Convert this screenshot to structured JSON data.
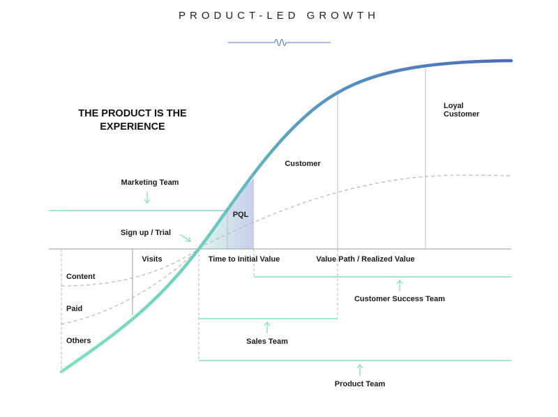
{
  "title": "PRODUCT-LED GROWTH",
  "headline": {
    "line1": "THE PRODUCT IS THE",
    "line2": "EXPERIENCE"
  },
  "labels": {
    "marketing_team": "Marketing Team",
    "signup_trial": "Sign up / Trial",
    "pql": "PQL",
    "customer": "Customer",
    "loyal_1": "Loyal",
    "loyal_2": "Customer",
    "visits": "Visits",
    "time_to_value": "Time to Initial Value",
    "value_path": "Value Path / Realized Value",
    "content": "Content",
    "paid": "Paid",
    "others": "Others",
    "customer_success_team": "Customer Success Team",
    "sales_team": "Sales Team",
    "product_team": "Product Team"
  },
  "colors": {
    "curve_start": "#7fe0c2",
    "curve_end": "#4b6cb7",
    "team_line": "#7fe0c2",
    "pql_fill": "#c3cde9",
    "grid": "#bdbdbd",
    "dashed": "#b5b5b5",
    "title_wave": "#5b7bc4"
  }
}
